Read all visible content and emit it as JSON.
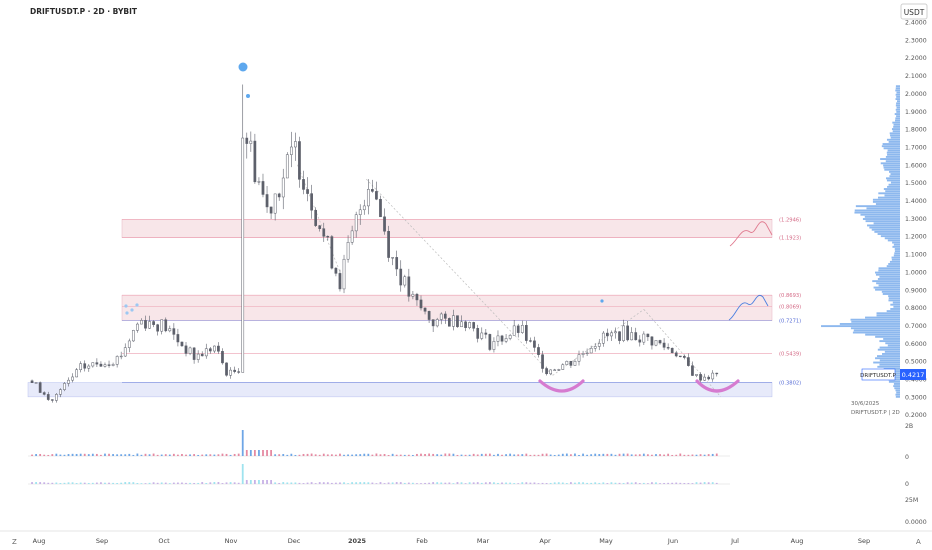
{
  "header": {
    "symbol_title": "DRIFTUSDT.P · 2D · BYBIT",
    "currency": "USDT"
  },
  "price_scale": {
    "ticks": [
      "2.4000",
      "2.3000",
      "2.2000",
      "2.1000",
      "2.0000",
      "1.9000",
      "1.8000",
      "1.7000",
      "1.6000",
      "1.5000",
      "1.4000",
      "1.3000",
      "1.2000",
      "1.1000",
      "1.0000",
      "0.9000",
      "0.8000",
      "0.7000",
      "0.6000",
      "0.5000",
      "0.4000",
      "0.3000",
      "0.2000"
    ],
    "current_symbol": "DRIFTUSDT.P",
    "current_price": "0.4217"
  },
  "volume_scale": {
    "ticks": [
      "2B",
      "0",
      "0",
      "25M",
      "0.0000"
    ]
  },
  "time_axis": {
    "labels": [
      "Aug",
      "Sep",
      "Oct",
      "Nov",
      "Dec",
      "2025",
      "Feb",
      "Mar",
      "Apr",
      "May",
      "Jun",
      "Jul",
      "Aug",
      "Sep"
    ]
  },
  "fib_labels": [
    "(1.2946)",
    "(1.1923)",
    "(0.8693)",
    "(0.8069)",
    "(0.7271)",
    "(0.5439)",
    "(0.3802)"
  ],
  "watermark": {
    "date": "30/6/2025",
    "line": "DRIFTUSDT.P | 2D"
  },
  "corner_left": "Z",
  "corner_right": "A",
  "colors": {
    "up": "#ffffff",
    "down": "#5d606b",
    "wick": "#5d606b",
    "accent": "#2962ff",
    "zone_pink": "#f6dde2",
    "zone_blue": "#dfe3f8",
    "arc": "#d67bd0",
    "profile": "#2f7de0"
  },
  "chart_data": {
    "type": "candlestick",
    "title": "DRIFTUSDT.P · 2D · BYBIT",
    "ylim": [
      0.2,
      2.45
    ],
    "y_scale": "linear",
    "y_axis": "right",
    "grid": false,
    "x_range": [
      "2024-07-25",
      "2025-09-25"
    ],
    "anchor_points": [
      {
        "date": "2024-07-27",
        "close": 0.39
      },
      {
        "date": "2024-08-05",
        "close": 0.27
      },
      {
        "date": "2024-08-20",
        "close": 0.46
      },
      {
        "date": "2024-09-08",
        "close": 0.52
      },
      {
        "date": "2024-09-18",
        "close": 0.73
      },
      {
        "date": "2024-09-30",
        "close": 0.7
      },
      {
        "date": "2024-10-15",
        "close": 0.52
      },
      {
        "date": "2024-10-25",
        "close": 0.58
      },
      {
        "date": "2024-11-01",
        "close": 0.42
      },
      {
        "date": "2024-11-06",
        "close": 0.46
      },
      {
        "date": "2024-11-10",
        "close": 1.75
      },
      {
        "date": "2024-11-20",
        "close": 1.35
      },
      {
        "date": "2024-12-04",
        "close": 1.68
      },
      {
        "date": "2024-12-18",
        "close": 1.2
      },
      {
        "date": "2024-12-26",
        "close": 0.95
      },
      {
        "date": "2025-01-06",
        "close": 1.4
      },
      {
        "date": "2025-01-10",
        "close": 1.55
      },
      {
        "date": "2025-01-20",
        "close": 1.1
      },
      {
        "date": "2025-01-30",
        "close": 0.85
      },
      {
        "date": "2025-02-10",
        "close": 0.72
      },
      {
        "date": "2025-02-25",
        "close": 0.74
      },
      {
        "date": "2025-03-10",
        "close": 0.6
      },
      {
        "date": "2025-03-25",
        "close": 0.68
      },
      {
        "date": "2025-04-07",
        "close": 0.45
      },
      {
        "date": "2025-04-20",
        "close": 0.5
      },
      {
        "date": "2025-05-02",
        "close": 0.62
      },
      {
        "date": "2025-05-15",
        "close": 0.66
      },
      {
        "date": "2025-05-28",
        "close": 0.62
      },
      {
        "date": "2025-06-10",
        "close": 0.55
      },
      {
        "date": "2025-06-20",
        "close": 0.41
      },
      {
        "date": "2025-06-30",
        "close": 0.42
      }
    ],
    "fib_levels": [
      1.2946,
      1.1923,
      0.8693,
      0.8069,
      0.7271,
      0.5439,
      0.3802
    ],
    "zones": [
      {
        "kind": "pink",
        "top": 1.2946,
        "bottom": 1.1923
      },
      {
        "kind": "pink",
        "top": 0.8693,
        "bottom": 0.7271
      },
      {
        "kind": "blue",
        "top": 0.3802,
        "bottom": 0.3
      }
    ],
    "volume_peaks": [
      {
        "date": "2024-11-08",
        "value": "spike"
      }
    ]
  }
}
